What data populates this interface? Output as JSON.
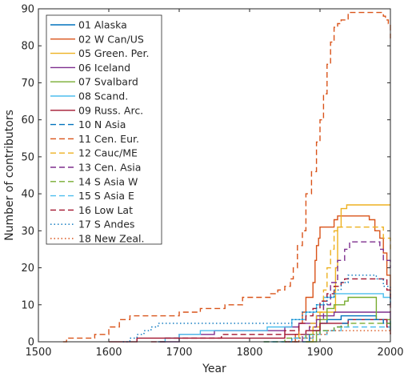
{
  "chart_data": {
    "type": "line",
    "xlabel": "Year",
    "ylabel": "Number of contributors",
    "xlim": [
      1500,
      2000
    ],
    "ylim": [
      0,
      90
    ],
    "x_ticks": [
      "1500",
      "1600",
      "1700",
      "1800",
      "1900",
      "2000"
    ],
    "y_ticks": [
      "0",
      "10",
      "20",
      "30",
      "40",
      "50",
      "60",
      "70",
      "80",
      "90"
    ],
    "x_tick_values": [
      1500,
      1600,
      1700,
      1800,
      1900,
      2000
    ],
    "y_tick_values": [
      0,
      10,
      20,
      30,
      40,
      50,
      60,
      70,
      80,
      90
    ],
    "grid": false,
    "legend_position": "top-left",
    "step": true,
    "series": [
      {
        "name": "01 Alaska",
        "color": "#0072BD",
        "dash": "solid",
        "points": [
          [
            1875,
            0
          ],
          [
            1885,
            2
          ],
          [
            1890,
            3
          ],
          [
            1900,
            5
          ],
          [
            1910,
            6
          ],
          [
            1930,
            7
          ],
          [
            1950,
            7
          ],
          [
            1970,
            7
          ],
          [
            1980,
            6
          ],
          [
            1995,
            5
          ],
          [
            2000,
            4
          ]
        ]
      },
      {
        "name": "02 W Can/US",
        "color": "#D95319",
        "dash": "solid",
        "points": [
          [
            1855,
            0
          ],
          [
            1865,
            2
          ],
          [
            1870,
            5
          ],
          [
            1875,
            8
          ],
          [
            1880,
            12
          ],
          [
            1890,
            16
          ],
          [
            1893,
            22
          ],
          [
            1895,
            26
          ],
          [
            1898,
            28
          ],
          [
            1900,
            31
          ],
          [
            1915,
            31
          ],
          [
            1920,
            33
          ],
          [
            1925,
            34
          ],
          [
            1965,
            34
          ],
          [
            1970,
            33
          ],
          [
            1978,
            30
          ],
          [
            1985,
            28
          ],
          [
            1990,
            24
          ],
          [
            1995,
            18
          ],
          [
            2000,
            12
          ]
        ]
      },
      {
        "name": "05 Green. Per.",
        "color": "#EDB120",
        "dash": "solid",
        "points": [
          [
            1880,
            0
          ],
          [
            1890,
            4
          ],
          [
            1900,
            8
          ],
          [
            1920,
            8
          ],
          [
            1922,
            20
          ],
          [
            1925,
            31
          ],
          [
            1930,
            36
          ],
          [
            1938,
            37
          ],
          [
            2000,
            37
          ]
        ]
      },
      {
        "name": "06 Iceland",
        "color": "#7E2F8E",
        "dash": "solid",
        "points": [
          [
            1670,
            0
          ],
          [
            1700,
            2
          ],
          [
            1750,
            3
          ],
          [
            1800,
            3
          ],
          [
            1850,
            4
          ],
          [
            1870,
            5
          ],
          [
            1895,
            7
          ],
          [
            1920,
            8
          ],
          [
            1990,
            8
          ],
          [
            2000,
            6
          ]
        ]
      },
      {
        "name": "07 Svalbard",
        "color": "#77AC30",
        "dash": "solid",
        "points": [
          [
            1880,
            0
          ],
          [
            1895,
            3
          ],
          [
            1900,
            6
          ],
          [
            1910,
            9
          ],
          [
            1920,
            10
          ],
          [
            1935,
            11
          ],
          [
            1940,
            12
          ],
          [
            1975,
            12
          ],
          [
            1980,
            6
          ],
          [
            2000,
            3
          ]
        ]
      },
      {
        "name": "08 Scand.",
        "color": "#4DBEEE",
        "dash": "solid",
        "points": [
          [
            1670,
            0
          ],
          [
            1680,
            1
          ],
          [
            1700,
            2
          ],
          [
            1730,
            3
          ],
          [
            1800,
            3
          ],
          [
            1825,
            4
          ],
          [
            1860,
            6
          ],
          [
            1880,
            8
          ],
          [
            1895,
            10
          ],
          [
            1905,
            12
          ],
          [
            1920,
            13
          ],
          [
            1975,
            13
          ],
          [
            1990,
            12
          ],
          [
            2000,
            10
          ]
        ]
      },
      {
        "name": "09 Russ. Arc.",
        "color": "#A2142F",
        "dash": "solid",
        "points": [
          [
            1600,
            0
          ],
          [
            1640,
            1
          ],
          [
            1700,
            1
          ],
          [
            1760,
            1
          ],
          [
            1800,
            1
          ],
          [
            1850,
            2
          ],
          [
            1880,
            3
          ],
          [
            1900,
            5
          ],
          [
            1940,
            6
          ],
          [
            1980,
            6
          ],
          [
            1995,
            4
          ],
          [
            2000,
            2
          ]
        ]
      },
      {
        "name": "10 N Asia",
        "color": "#0072BD",
        "dash": "dashed",
        "points": [
          [
            1820,
            0
          ],
          [
            1860,
            1
          ],
          [
            1880,
            2
          ],
          [
            1900,
            3
          ],
          [
            1920,
            4
          ],
          [
            1930,
            5
          ],
          [
            1940,
            6
          ],
          [
            1980,
            6
          ],
          [
            1990,
            5
          ],
          [
            2000,
            6
          ]
        ]
      },
      {
        "name": "11 Cen. Eur.",
        "color": "#D95319",
        "dash": "dashed",
        "points": [
          [
            1535,
            0
          ],
          [
            1540,
            1
          ],
          [
            1580,
            2
          ],
          [
            1600,
            4
          ],
          [
            1615,
            6
          ],
          [
            1630,
            7
          ],
          [
            1690,
            7
          ],
          [
            1700,
            8
          ],
          [
            1730,
            9
          ],
          [
            1760,
            9
          ],
          [
            1765,
            10
          ],
          [
            1785,
            10
          ],
          [
            1790,
            12
          ],
          [
            1830,
            13
          ],
          [
            1840,
            14
          ],
          [
            1850,
            15
          ],
          [
            1858,
            17
          ],
          [
            1862,
            20
          ],
          [
            1868,
            26
          ],
          [
            1875,
            30
          ],
          [
            1880,
            40
          ],
          [
            1888,
            46
          ],
          [
            1895,
            54
          ],
          [
            1900,
            60
          ],
          [
            1905,
            67
          ],
          [
            1910,
            75
          ],
          [
            1915,
            81
          ],
          [
            1920,
            85
          ],
          [
            1925,
            86
          ],
          [
            1930,
            87
          ],
          [
            1940,
            89
          ],
          [
            1985,
            89
          ],
          [
            1990,
            88
          ],
          [
            1993,
            87
          ],
          [
            1997,
            86
          ],
          [
            2000,
            82
          ]
        ]
      },
      {
        "name": "12 Cauc/ME",
        "color": "#EDB120",
        "dash": "dashed",
        "points": [
          [
            1850,
            0
          ],
          [
            1870,
            2
          ],
          [
            1885,
            5
          ],
          [
            1895,
            8
          ],
          [
            1905,
            14
          ],
          [
            1910,
            20
          ],
          [
            1915,
            25
          ],
          [
            1920,
            30
          ],
          [
            1925,
            31
          ],
          [
            1985,
            31
          ],
          [
            1990,
            28
          ],
          [
            2000,
            25
          ]
        ]
      },
      {
        "name": "13 Cen. Asia",
        "color": "#7E2F8E",
        "dash": "dashed",
        "points": [
          [
            1850,
            0
          ],
          [
            1875,
            2
          ],
          [
            1885,
            4
          ],
          [
            1895,
            6
          ],
          [
            1905,
            10
          ],
          [
            1915,
            16
          ],
          [
            1925,
            22
          ],
          [
            1935,
            25
          ],
          [
            1942,
            27
          ],
          [
            1985,
            25
          ],
          [
            1990,
            22
          ],
          [
            2000,
            20
          ]
        ]
      },
      {
        "name": "14 S Asia W",
        "color": "#77AC30",
        "dash": "dashed",
        "points": [
          [
            1820,
            0
          ],
          [
            1850,
            1
          ],
          [
            1880,
            2
          ],
          [
            1900,
            3
          ],
          [
            1920,
            4
          ],
          [
            1940,
            5
          ],
          [
            1980,
            5
          ],
          [
            2000,
            4
          ]
        ]
      },
      {
        "name": "15 S Asia E",
        "color": "#4DBEEE",
        "dash": "dashed",
        "points": [
          [
            1830,
            0
          ],
          [
            1860,
            1
          ],
          [
            1890,
            2
          ],
          [
            1910,
            3
          ],
          [
            1930,
            4
          ],
          [
            1990,
            4
          ],
          [
            2000,
            3
          ]
        ]
      },
      {
        "name": "16 Low Lat",
        "color": "#A2142F",
        "dash": "dashed",
        "points": [
          [
            1660,
            0
          ],
          [
            1680,
            1
          ],
          [
            1740,
            1
          ],
          [
            1760,
            2
          ],
          [
            1800,
            2
          ],
          [
            1850,
            3
          ],
          [
            1870,
            5
          ],
          [
            1880,
            7
          ],
          [
            1890,
            9
          ],
          [
            1900,
            11
          ],
          [
            1910,
            13
          ],
          [
            1920,
            15
          ],
          [
            1930,
            16
          ],
          [
            1935,
            17
          ],
          [
            1990,
            17
          ],
          [
            1995,
            14
          ],
          [
            2000,
            8
          ]
        ]
      },
      {
        "name": "17 S Andes",
        "color": "#0072BD",
        "dash": "dotted",
        "points": [
          [
            1620,
            0
          ],
          [
            1630,
            1
          ],
          [
            1640,
            2
          ],
          [
            1650,
            3
          ],
          [
            1660,
            4
          ],
          [
            1670,
            5
          ],
          [
            1850,
            5
          ],
          [
            1860,
            6
          ],
          [
            1875,
            8
          ],
          [
            1895,
            10
          ],
          [
            1910,
            12
          ],
          [
            1920,
            14
          ],
          [
            1930,
            16
          ],
          [
            1940,
            18
          ],
          [
            1970,
            18
          ],
          [
            1980,
            17
          ],
          [
            1990,
            15
          ],
          [
            2000,
            10
          ]
        ]
      },
      {
        "name": "18 New Zeal.",
        "color": "#D95319",
        "dash": "dotted",
        "points": [
          [
            1850,
            0
          ],
          [
            1870,
            1
          ],
          [
            1890,
            2
          ],
          [
            1910,
            3
          ],
          [
            1990,
            3
          ],
          [
            2000,
            2
          ]
        ]
      }
    ]
  }
}
